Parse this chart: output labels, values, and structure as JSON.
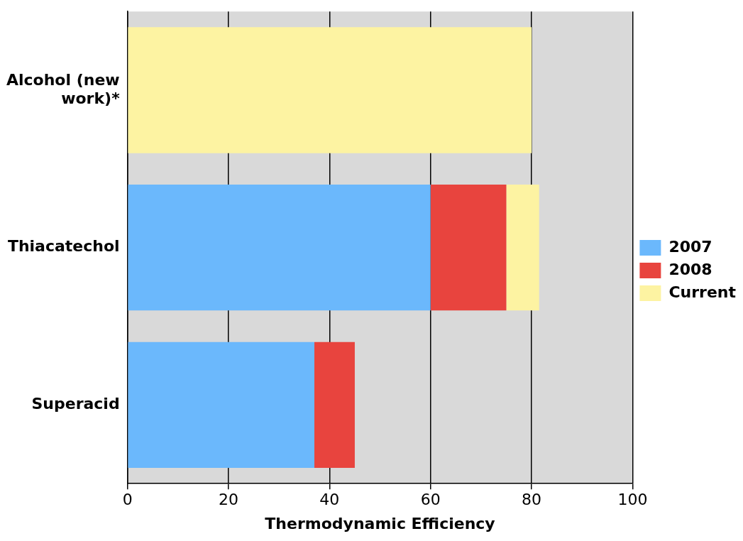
{
  "chart_data": {
    "type": "bar",
    "orientation": "horizontal",
    "stacked": true,
    "xlabel": "Thermodynamic Efficiency",
    "categories": [
      "Alcohol (new work)*",
      "Thiacatechol",
      "Superacid"
    ],
    "series": [
      {
        "name": "2007",
        "color": "#6bb8fc",
        "values": [
          null,
          60,
          37
        ]
      },
      {
        "name": "2008",
        "color": "#e8443e",
        "values": [
          null,
          15,
          8
        ]
      },
      {
        "name": "Current",
        "color": "#fdf3a2",
        "values": [
          80,
          6.5,
          null
        ]
      }
    ],
    "xlim": [
      0,
      100
    ],
    "xticks": [
      0,
      20,
      40,
      60,
      80,
      100
    ],
    "grid": "x",
    "legend": "right"
  }
}
